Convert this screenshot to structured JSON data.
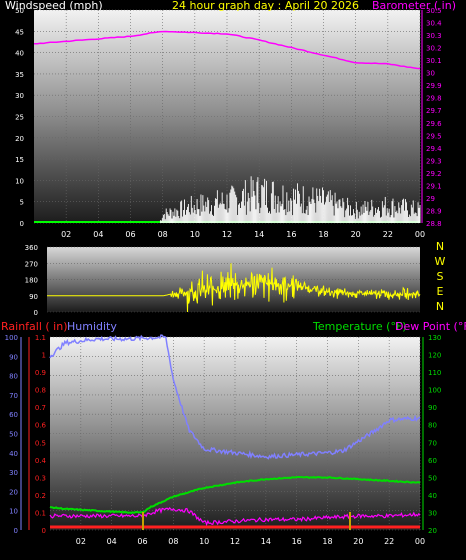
{
  "header": {
    "left_label": "Windspeed (mph)",
    "center_label": "24 hour graph day : April 20 2026",
    "right_label": "Barometer ( in)"
  },
  "colors": {
    "windspeed": "#ffffff",
    "gust_base": "#00ff00",
    "barometer": "#ff00ff",
    "wind_direction": "#ffff00",
    "rainfall": "#ff2020",
    "humidity": "#8080ff",
    "temperature": "#00dd00",
    "dew_point": "#ff00ff",
    "sunrise_marker": "#c8a000"
  },
  "x_ticks": [
    "02",
    "04",
    "06",
    "08",
    "10",
    "12",
    "14",
    "16",
    "18",
    "20",
    "22",
    "00"
  ],
  "panel1": {
    "left_ticks": [
      "0",
      "5",
      "10",
      "15",
      "20",
      "25",
      "30",
      "35",
      "40",
      "45",
      "50"
    ],
    "right_ticks": [
      "28.8",
      "28.9",
      "29",
      "29.1",
      "29.2",
      "29.3",
      "29.4",
      "29.5",
      "29.6",
      "29.7",
      "29.8",
      "29.9",
      "30",
      "30.1",
      "30.2",
      "30.3",
      "30.4",
      "30.5"
    ]
  },
  "panel2": {
    "left_ticks": [
      "0",
      "90",
      "180",
      "270",
      "360"
    ],
    "compass": [
      "N",
      "W",
      "S",
      "E",
      "N"
    ]
  },
  "panel3": {
    "labels": {
      "rainfall": "Rainfall ( in)",
      "humidity": "Humidity",
      "temperature": "Temperature (°F)",
      "dew_point": "Dew Point (°F)"
    },
    "humidity_ticks": [
      "0",
      "10",
      "20",
      "30",
      "40",
      "50",
      "60",
      "70",
      "80",
      "90",
      "100"
    ],
    "rain_ticks": [
      "0",
      "0.1",
      "0.2",
      "0.3",
      "0.4",
      "0.5",
      "0.6",
      "0.7",
      "0.8",
      "0.9",
      "1",
      "1.1"
    ],
    "temp_ticks": [
      "20",
      "30",
      "40",
      "50",
      "60",
      "70",
      "80",
      "90",
      "100",
      "110",
      "120",
      "130"
    ]
  },
  "chart_data": [
    {
      "type": "line",
      "title": "24 hour graph day : April 20 2026",
      "x_hours": [
        0,
        4,
        8,
        12,
        16,
        20,
        24
      ],
      "series": [
        {
          "name": "Barometer ( in)",
          "axis": "right",
          "x": [
            0,
            2,
            4,
            6,
            8,
            10,
            12,
            14,
            16,
            18,
            20,
            22,
            24
          ],
          "values": [
            30.23,
            30.25,
            30.27,
            30.29,
            30.33,
            30.32,
            30.31,
            30.26,
            30.2,
            30.14,
            30.08,
            30.07,
            30.03
          ]
        },
        {
          "name": "Windspeed (mph)",
          "axis": "left",
          "x": [
            0,
            7.8,
            8,
            10,
            12,
            14,
            16,
            18,
            20,
            22,
            24
          ],
          "values": [
            0,
            0,
            2,
            4,
            5,
            7,
            6,
            5,
            3,
            4,
            3
          ]
        }
      ],
      "y_left_range": [
        0,
        50
      ],
      "y_right_range": [
        28.8,
        30.5
      ]
    },
    {
      "type": "line",
      "x_hours": [
        0,
        24
      ],
      "series": [
        {
          "name": "wind direction",
          "x": [
            0,
            7.5,
            8,
            10,
            12,
            14,
            16,
            18,
            20,
            22,
            24
          ],
          "values": [
            90,
            90,
            100,
            120,
            150,
            160,
            150,
            110,
            100,
            100,
            100
          ]
        }
      ],
      "y_range": [
        0,
        360
      ]
    },
    {
      "type": "line",
      "series": [
        {
          "name": "Humidity",
          "axis": "left",
          "x": [
            0,
            1,
            3,
            5,
            7.5,
            8,
            9,
            10,
            12,
            14,
            16,
            18,
            19,
            21,
            22,
            24
          ],
          "values": [
            90,
            97,
            99,
            99,
            100,
            78,
            52,
            42,
            40,
            38,
            39,
            40,
            41,
            51,
            57,
            58
          ]
        },
        {
          "name": "Temperature (°F)",
          "axis": "right",
          "x": [
            0,
            1,
            3,
            5,
            6,
            6.5,
            8,
            10,
            12,
            14,
            16,
            18,
            20,
            22,
            24
          ],
          "values": [
            33,
            32,
            31,
            30,
            30,
            33,
            39,
            44,
            47,
            49,
            50,
            50,
            49,
            48,
            47
          ]
        },
        {
          "name": "Dew Point (°F)",
          "axis": "right",
          "x": [
            0,
            3,
            6,
            7,
            8,
            9,
            10,
            12,
            14,
            16,
            18,
            20,
            22,
            24
          ],
          "values": [
            28,
            28,
            28,
            31,
            32,
            31,
            24,
            25,
            26,
            26,
            27,
            28,
            28,
            29
          ]
        },
        {
          "name": "Rainfall ( in)",
          "axis": "left",
          "x": [
            0,
            24
          ],
          "values": [
            0,
            0
          ]
        }
      ],
      "y_humidity_range": [
        0,
        100
      ],
      "y_rain_range": [
        0,
        1.1
      ],
      "y_temp_range": [
        20,
        130
      ]
    }
  ]
}
